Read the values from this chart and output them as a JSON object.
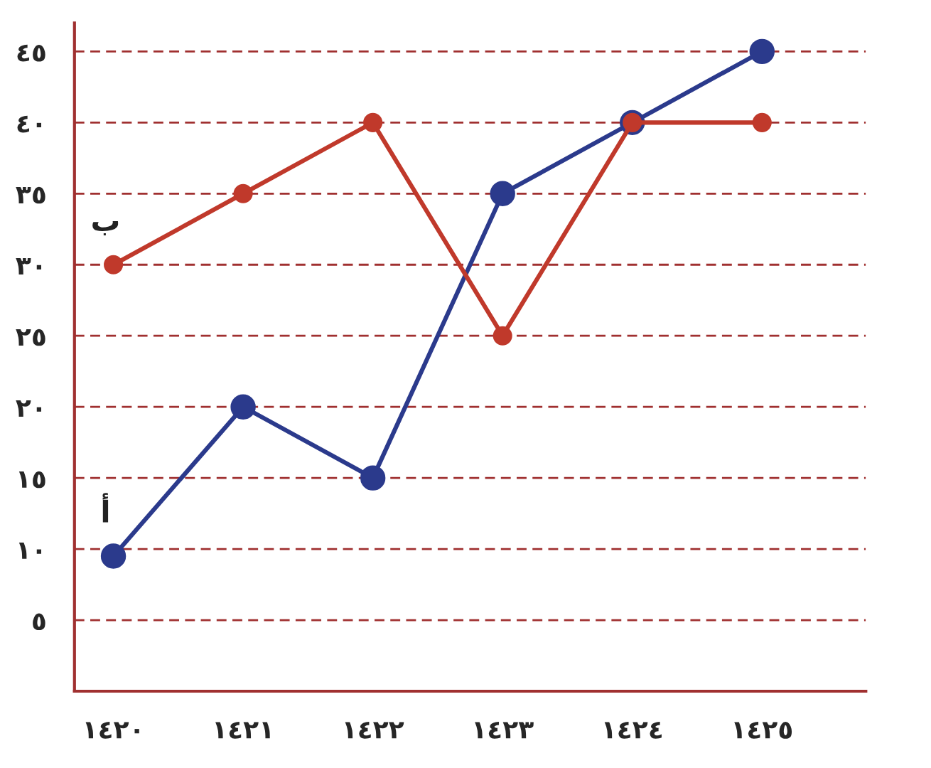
{
  "chart_data": {
    "type": "line",
    "categories": [
      "١٤٢٠",
      "١٤٢١",
      "١٤٢٢",
      "١٤٢٣",
      "١٤٢٤",
      "١٤٢٥"
    ],
    "series": [
      {
        "name": "أ",
        "color": "#2b3a8c",
        "values": [
          9.5,
          20,
          15,
          35,
          40,
          45
        ]
      },
      {
        "name": "ب",
        "color": "#c0392b",
        "values": [
          30,
          35,
          40,
          25,
          40,
          40
        ]
      }
    ],
    "ylim": [
      0,
      47
    ],
    "yticks": [
      {
        "value": 5,
        "label": "٥"
      },
      {
        "value": 10,
        "label": "١٠"
      },
      {
        "value": 15,
        "label": "١٥"
      },
      {
        "value": 20,
        "label": "٢٠"
      },
      {
        "value": 25,
        "label": "٢٥"
      },
      {
        "value": 30,
        "label": "٣٠"
      },
      {
        "value": 35,
        "label": "٣٥"
      },
      {
        "value": 40,
        "label": "٤٠"
      },
      {
        "value": 45,
        "label": "٤٥"
      }
    ],
    "grid": "y",
    "legend": false,
    "marker": "circle",
    "line_style": "solid"
  }
}
